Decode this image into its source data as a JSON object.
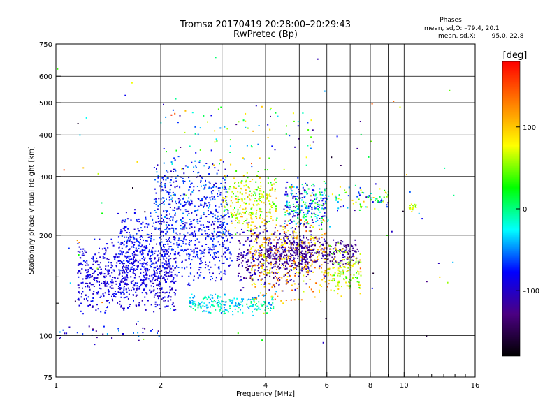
{
  "chart_data": {
    "type": "scatter",
    "title": "Tromsø 20170419 20:28:00–20:29:43",
    "subtitle": "RwPretec (Bp)",
    "xlabel": "Frequency [MHz]",
    "ylabel": "Stationary phase Virtual Height [km]",
    "x_scale": "log",
    "y_scale": "log",
    "xlim": [
      1,
      16
    ],
    "ylim": [
      75,
      750
    ],
    "x_ticks": [
      1,
      2,
      4,
      6,
      8,
      10,
      16
    ],
    "x_tick_labels": [
      "1",
      "2",
      "4",
      "6",
      "8",
      "10",
      "16"
    ],
    "x_minor_ticks": [
      3,
      5,
      7,
      9,
      11,
      12,
      13,
      14,
      15
    ],
    "y_ticks": [
      75,
      100,
      200,
      300,
      400,
      500,
      600,
      750
    ],
    "y_tick_labels": [
      "75",
      "100",
      "200",
      "300",
      "400",
      "500",
      "600",
      "750"
    ],
    "y_minor_ticks": [
      125,
      150
    ],
    "grid": true,
    "legend": {
      "title": "Phases",
      "lines": [
        {
          "label": "mean, sd,O:",
          "value": "–79.4, 20.1"
        },
        {
          "label": "mean, sd,X:",
          "value": " 95.0, 22.8"
        }
      ],
      "placement": "top-right"
    },
    "colorbar": {
      "label": "[deg]",
      "range": [
        -180,
        180
      ],
      "ticks": [
        100,
        0,
        -100
      ],
      "tick_labels": [
        "100",
        "0",
        "–100"
      ],
      "colormap": [
        "#000000",
        "#4b0082",
        "#0000ff",
        "#00ffff",
        "#00ff00",
        "#ffff00",
        "#ff8000",
        "#ff0000"
      ]
    },
    "clusters": [
      {
        "x": [
          1.15,
          2.2
        ],
        "y": [
          115,
          200
        ],
        "c": [
          -110,
          -70
        ],
        "n": 700
      },
      {
        "x": [
          1.5,
          3.2
        ],
        "y": [
          140,
          250
        ],
        "c": [
          -100,
          -60
        ],
        "n": 600
      },
      {
        "x": [
          1.9,
          3.1
        ],
        "y": [
          190,
          360
        ],
        "c": [
          -110,
          -40
        ],
        "n": 380
      },
      {
        "x": [
          2.4,
          4.2
        ],
        "y": [
          115,
          135
        ],
        "c": [
          -60,
          10
        ],
        "n": 220
      },
      {
        "x": [
          3.0,
          4.3
        ],
        "y": [
          200,
          320
        ],
        "c": [
          20,
          120
        ],
        "n": 260
      },
      {
        "x": [
          3.3,
          5.4
        ],
        "y": [
          135,
          230
        ],
        "c": [
          -140,
          -90
        ],
        "n": 420
      },
      {
        "x": [
          3.6,
          6.0
        ],
        "y": [
          120,
          240
        ],
        "c": [
          60,
          150
        ],
        "n": 330
      },
      {
        "x": [
          4.0,
          7.4
        ],
        "y": [
          160,
          200
        ],
        "c": [
          -140,
          -100
        ],
        "n": 300
      },
      {
        "x": [
          4.5,
          6.1
        ],
        "y": [
          205,
          300
        ],
        "c": [
          -120,
          40
        ],
        "n": 240
      },
      {
        "x": [
          6.0,
          7.5
        ],
        "y": [
          130,
          195
        ],
        "c": [
          30,
          110
        ],
        "n": 140
      },
      {
        "x": [
          6.2,
          9.0
        ],
        "y": [
          235,
          290
        ],
        "c": [
          -120,
          100
        ],
        "n": 80
      },
      {
        "x": [
          2.0,
          5.5
        ],
        "y": [
          300,
          520
        ],
        "c": [
          -130,
          110
        ],
        "n": 90
      },
      {
        "x": [
          10.3,
          10.8
        ],
        "y": [
          235,
          250
        ],
        "c": [
          40,
          90
        ],
        "n": 20
      },
      {
        "x": [
          1.0,
          2.0
        ],
        "y": [
          96,
          110
        ],
        "c": [
          -140,
          -40
        ],
        "n": 35
      },
      {
        "x": [
          1.0,
          14.0
        ],
        "y": [
          78,
          720
        ],
        "c": [
          -170,
          170
        ],
        "n": 90
      }
    ]
  }
}
